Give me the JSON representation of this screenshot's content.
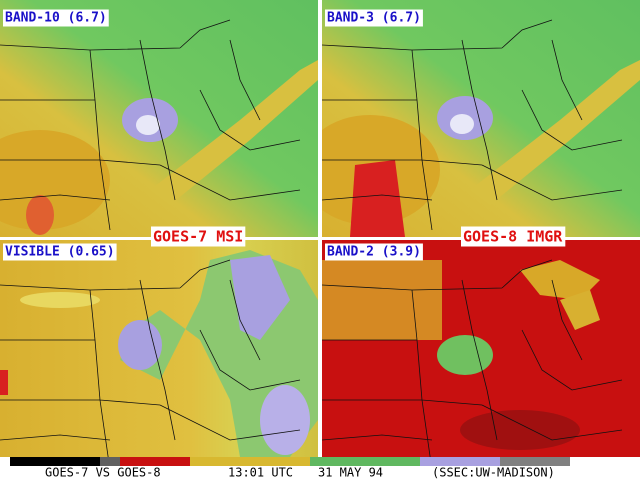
{
  "panels": [
    {
      "label": "BAND-10 (6.7)"
    },
    {
      "label": "BAND-3 (6.7)"
    },
    {
      "label": "VISIBLE (0.65)"
    },
    {
      "label": "BAND-2 (3.9)"
    }
  ],
  "satellite_labels": [
    "GOES-7 MSI",
    "GOES-8 IMGR"
  ],
  "footer": [
    "GOES-7 VS GOES-8",
    "13:01 UTC",
    "31 MAY 94",
    "(SSEC:UW-MADISON)"
  ]
}
